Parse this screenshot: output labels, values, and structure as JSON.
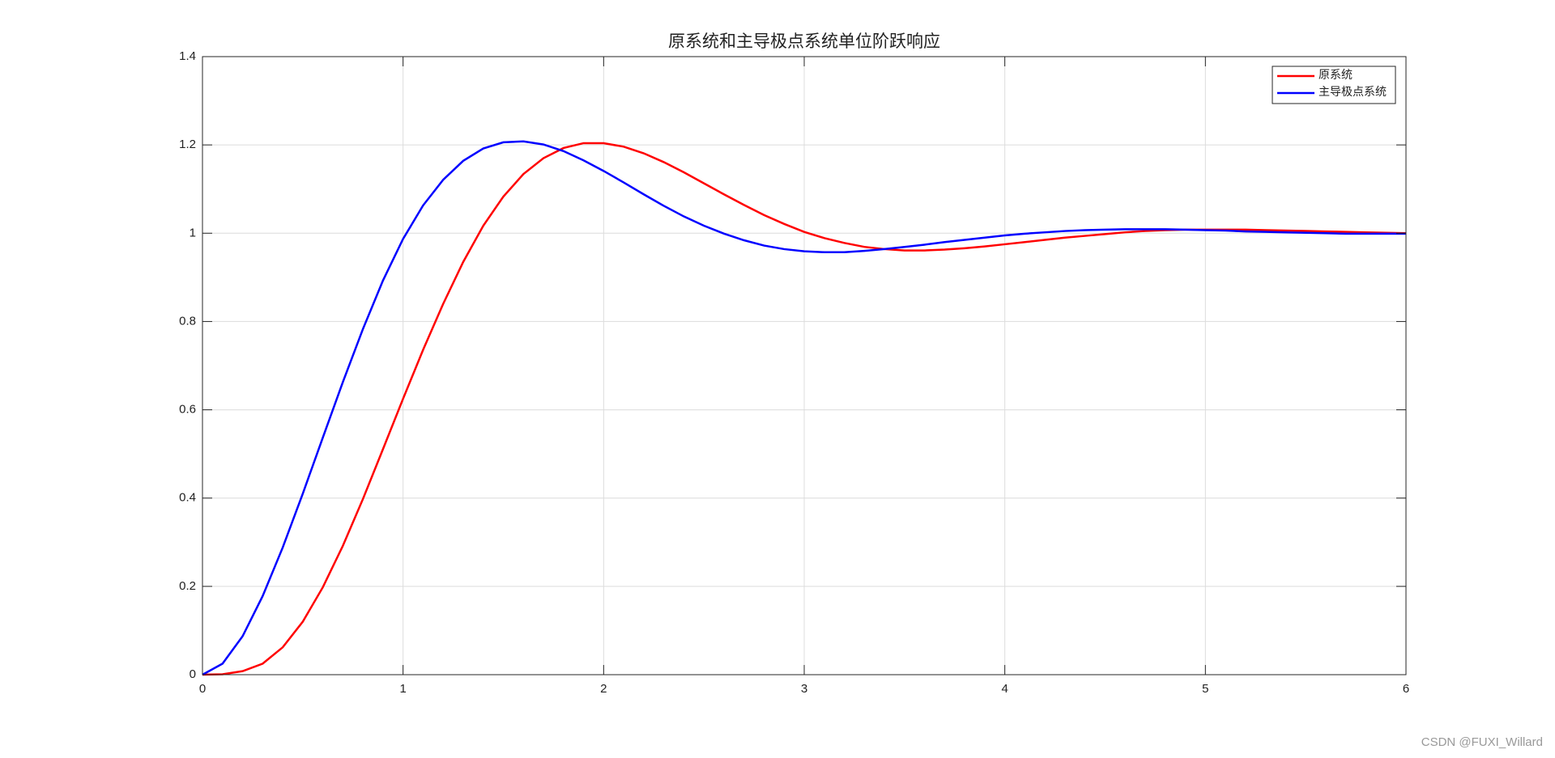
{
  "chart_data": {
    "type": "line",
    "title": "原系统和主导极点系统单位阶跃响应",
    "watermark": "CSDN @FUXI_Willard",
    "x": [
      0,
      0.1,
      0.2,
      0.3,
      0.4,
      0.5,
      0.6,
      0.7,
      0.8,
      0.9,
      1,
      1.1,
      1.2,
      1.3,
      1.4,
      1.5,
      1.6,
      1.7,
      1.8,
      1.9,
      2,
      2.1,
      2.2,
      2.3,
      2.4,
      2.5,
      2.6,
      2.7,
      2.8,
      2.9,
      3,
      3.1,
      3.2,
      3.3,
      3.4,
      3.5,
      3.6,
      3.7,
      3.8,
      3.9,
      4,
      4.1,
      4.2,
      4.3,
      4.4,
      4.5,
      4.6,
      4.7,
      4.8,
      4.9,
      5,
      5.1,
      5.2,
      5.3,
      5.4,
      5.5,
      5.6,
      5.7,
      5.8,
      5.9,
      6
    ],
    "series": [
      {
        "name": "原系统",
        "color": "#ff0000",
        "values": [
          0,
          0.001,
          0.008,
          0.025,
          0.062,
          0.12,
          0.198,
          0.292,
          0.398,
          0.511,
          0.625,
          0.736,
          0.84,
          0.935,
          1.017,
          1.083,
          1.134,
          1.17,
          1.193,
          1.204,
          1.204,
          1.196,
          1.181,
          1.161,
          1.138,
          1.113,
          1.088,
          1.064,
          1.041,
          1.021,
          1.003,
          0.989,
          0.978,
          0.969,
          0.964,
          0.961,
          0.961,
          0.963,
          0.966,
          0.97,
          0.975,
          0.98,
          0.985,
          0.99,
          0.994,
          0.998,
          1.002,
          1.005,
          1.007,
          1.008,
          1.008,
          1.008,
          1.008,
          1.007,
          1.006,
          1.005,
          1.004,
          1.003,
          1.002,
          1.001,
          1.0
        ]
      },
      {
        "name": "主导极点系统",
        "color": "#0000ff",
        "values": [
          0,
          0.025,
          0.087,
          0.178,
          0.288,
          0.41,
          0.537,
          0.663,
          0.783,
          0.893,
          0.987,
          1.063,
          1.121,
          1.164,
          1.192,
          1.206,
          1.208,
          1.201,
          1.186,
          1.165,
          1.141,
          1.115,
          1.088,
          1.062,
          1.038,
          1.017,
          0.999,
          0.984,
          0.972,
          0.964,
          0.959,
          0.957,
          0.957,
          0.96,
          0.964,
          0.969,
          0.974,
          0.98,
          0.985,
          0.99,
          0.995,
          0.999,
          1.002,
          1.005,
          1.007,
          1.008,
          1.009,
          1.009,
          1.009,
          1.008,
          1.007,
          1.006,
          1.004,
          1.003,
          1.002,
          1.001,
          1.0,
          0.999,
          0.999,
          0.999,
          0.999
        ]
      }
    ],
    "xlim": [
      0,
      6
    ],
    "xticks": [
      0,
      1,
      2,
      3,
      4,
      5,
      6
    ],
    "ylim": [
      0,
      1.4
    ],
    "yticks": [
      0,
      0.2,
      0.4,
      0.6,
      0.8,
      1,
      1.2,
      1.4
    ],
    "grid": true,
    "legend": "upper right"
  }
}
